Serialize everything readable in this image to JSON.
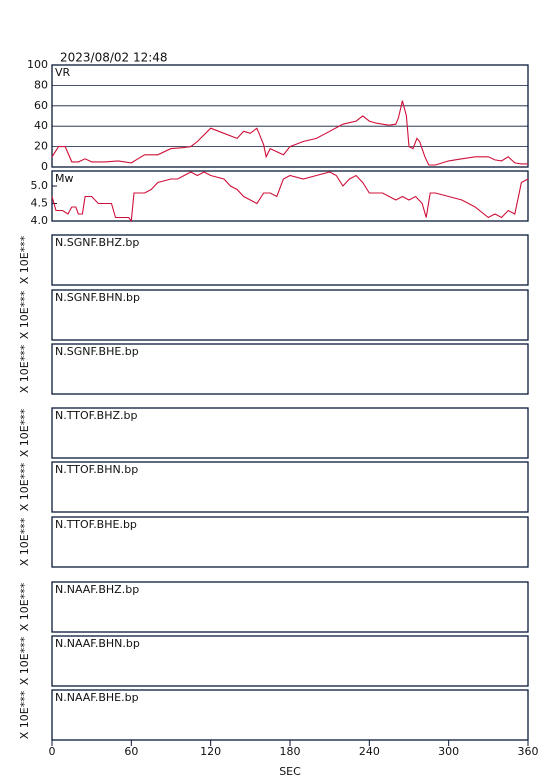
{
  "header": {
    "timestamp": "2023/08/02 12:48"
  },
  "chart_data": [
    {
      "type": "line",
      "name": "VR",
      "color": "#d0103a",
      "ylim": [
        0,
        100
      ],
      "yticks": [
        0,
        20,
        40,
        60,
        80,
        100
      ],
      "grid": true,
      "x": [
        0,
        5,
        10,
        15,
        20,
        25,
        30,
        40,
        50,
        60,
        65,
        70,
        80,
        90,
        100,
        105,
        110,
        120,
        130,
        140,
        145,
        150,
        155,
        160,
        162,
        165,
        170,
        175,
        180,
        190,
        200,
        210,
        220,
        230,
        235,
        240,
        245,
        250,
        255,
        260,
        262,
        265,
        268,
        270,
        273,
        276,
        278,
        282,
        285,
        290,
        300,
        310,
        320,
        330,
        335,
        340,
        345,
        350,
        355,
        360
      ],
      "values": [
        10,
        20,
        20,
        5,
        5,
        8,
        5,
        5,
        6,
        4,
        8,
        12,
        12,
        18,
        19,
        20,
        25,
        38,
        33,
        28,
        35,
        33,
        38,
        22,
        10,
        18,
        15,
        12,
        20,
        25,
        28,
        35,
        42,
        45,
        50,
        45,
        43,
        42,
        41,
        42,
        48,
        65,
        50,
        20,
        18,
        28,
        25,
        10,
        2,
        2,
        6,
        8,
        10,
        10,
        7,
        6,
        10,
        4,
        3,
        3
      ]
    },
    {
      "type": "line",
      "name": "Mw",
      "color": "#d0103a",
      "ylim": [
        4.0,
        5.43
      ],
      "yticks": [
        {
          "value": 4,
          "label": "4.0"
        },
        {
          "value": 4.5,
          "label": "4.5"
        },
        {
          "value": 5,
          "label": "5.0"
        }
      ],
      "x": [
        0,
        3,
        8,
        12,
        15,
        18,
        20,
        23,
        25,
        30,
        35,
        45,
        48,
        58,
        60,
        62,
        70,
        75,
        80,
        90,
        95,
        100,
        105,
        110,
        115,
        120,
        130,
        135,
        140,
        145,
        150,
        155,
        160,
        165,
        170,
        175,
        180,
        190,
        200,
        210,
        215,
        220,
        225,
        230,
        235,
        240,
        250,
        260,
        265,
        270,
        275,
        280,
        283,
        286,
        290,
        300,
        310,
        320,
        330,
        335,
        340,
        345,
        350,
        355,
        360
      ],
      "values": [
        4.7,
        4.3,
        4.3,
        4.2,
        4.4,
        4.4,
        4.2,
        4.2,
        4.7,
        4.7,
        4.5,
        4.5,
        4.1,
        4.1,
        4.0,
        4.8,
        4.8,
        4.9,
        5.1,
        5.2,
        5.2,
        5.3,
        5.4,
        5.3,
        5.4,
        5.3,
        5.2,
        5.0,
        4.9,
        4.7,
        4.6,
        4.5,
        4.8,
        4.8,
        4.7,
        5.2,
        5.3,
        5.2,
        5.3,
        5.4,
        5.3,
        5.0,
        5.2,
        5.3,
        5.1,
        4.8,
        4.8,
        4.6,
        4.7,
        4.6,
        4.7,
        4.5,
        4.1,
        4.8,
        4.8,
        4.7,
        4.6,
        4.4,
        4.1,
        4.2,
        4.1,
        4.3,
        4.2,
        5.1,
        5.2
      ]
    }
  ],
  "x_axis": {
    "label": "SEC",
    "xlim": [
      0,
      360
    ],
    "xticks": [
      0,
      60,
      120,
      180,
      240,
      300,
      360
    ]
  },
  "panels": [
    {
      "label": "N.SGNF.BHZ.bp",
      "ylabel": "X 10E***"
    },
    {
      "label": "N.SGNF.BHN.bp",
      "ylabel": "X 10E***"
    },
    {
      "label": "N.SGNF.BHE.bp",
      "ylabel": "X 10E***"
    },
    {
      "label": "N.TTOF.BHZ.bp",
      "ylabel": "X 10E***"
    },
    {
      "label": "N.TTOF.BHN.bp",
      "ylabel": "X 10E***"
    },
    {
      "label": "N.TTOF.BHE.bp",
      "ylabel": "X 10E***"
    },
    {
      "label": "N.NAAF.BHZ.bp",
      "ylabel": "X 10E***"
    },
    {
      "label": "N.NAAF.BHN.bp",
      "ylabel": "X 10E***"
    },
    {
      "label": "N.NAAF.BHE.bp",
      "ylabel": "X 10E***"
    }
  ]
}
